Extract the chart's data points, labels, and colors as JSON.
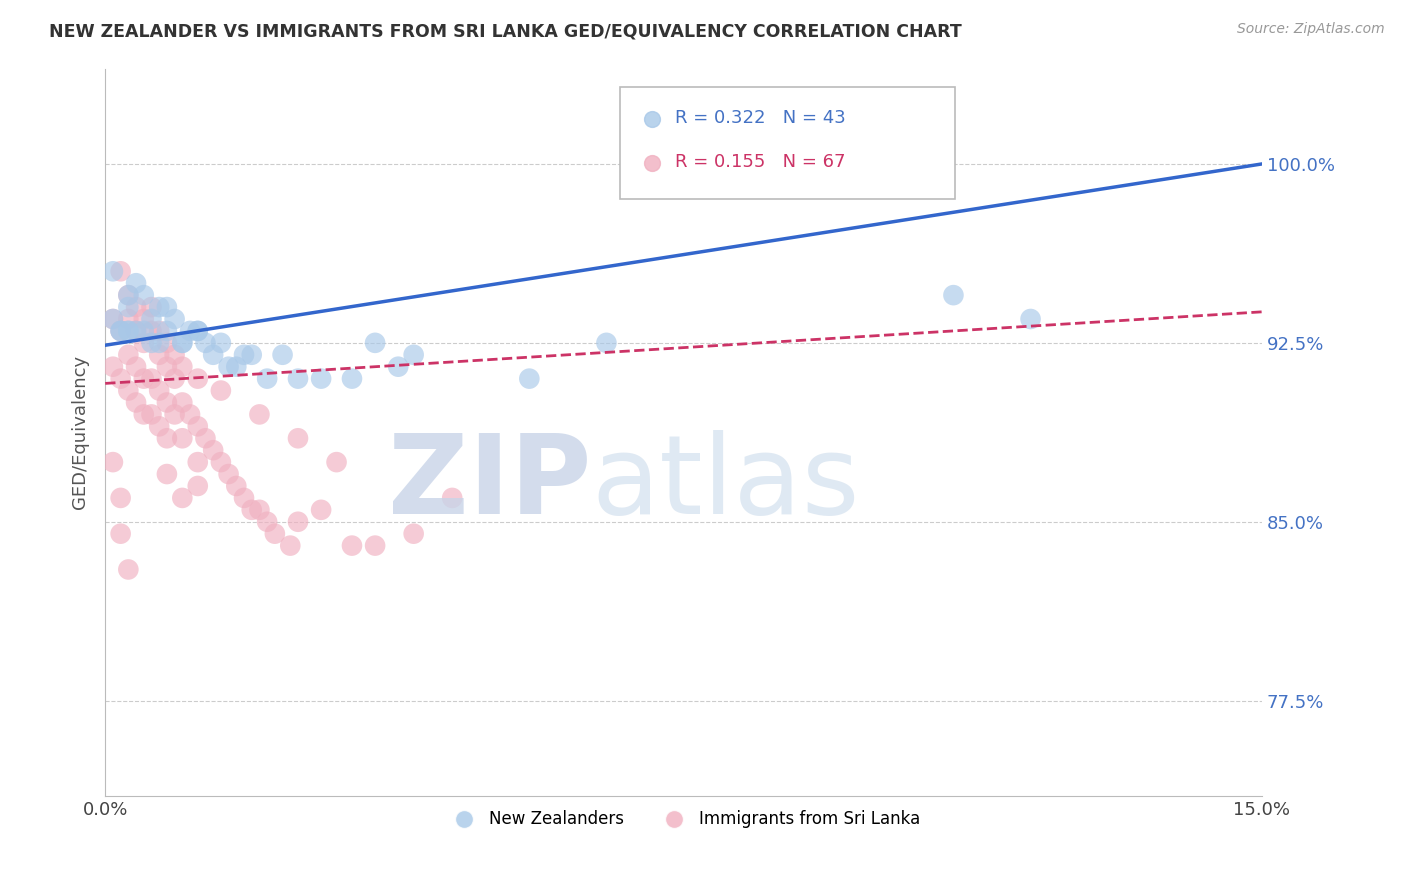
{
  "title": "NEW ZEALANDER VS IMMIGRANTS FROM SRI LANKA GED/EQUIVALENCY CORRELATION CHART",
  "source": "Source: ZipAtlas.com",
  "ylabel": "GED/Equivalency",
  "ytick_labels": [
    "77.5%",
    "85.0%",
    "92.5%",
    "100.0%"
  ],
  "ytick_values": [
    0.775,
    0.85,
    0.925,
    1.0
  ],
  "xmin": 0.0,
  "xmax": 0.15,
  "ymin": 0.735,
  "ymax": 1.04,
  "blue_color": "#a8c8e8",
  "pink_color": "#f0b0c0",
  "blue_line_color": "#3366cc",
  "pink_line_color": "#cc3366",
  "blue_line_y0": 0.924,
  "blue_line_y1": 1.0,
  "pink_line_y0": 0.908,
  "pink_line_y1": 0.938,
  "legend_text_blue": "R = 0.322   N = 43",
  "legend_text_pink": "R = 0.155   N = 67",
  "legend_color_blue": "#4472c4",
  "legend_color_pink": "#cc3366",
  "watermark_zip": "ZIP",
  "watermark_atlas": "atlas",
  "bottom_label_blue": "New Zealanders",
  "bottom_label_pink": "Immigrants from Sri Lanka",
  "blue_x": [
    0.001,
    0.002,
    0.003,
    0.003,
    0.004,
    0.004,
    0.005,
    0.005,
    0.006,
    0.007,
    0.007,
    0.008,
    0.009,
    0.01,
    0.011,
    0.012,
    0.013,
    0.014,
    0.015,
    0.016,
    0.017,
    0.018,
    0.019,
    0.021,
    0.023,
    0.025,
    0.028,
    0.032,
    0.038,
    0.001,
    0.002,
    0.003,
    0.006,
    0.008,
    0.01,
    0.012,
    0.055,
    0.065,
    0.11,
    0.12,
    0.035,
    0.04,
    0.003
  ],
  "blue_y": [
    0.935,
    0.93,
    0.945,
    0.94,
    0.95,
    0.93,
    0.945,
    0.93,
    0.925,
    0.94,
    0.925,
    0.93,
    0.935,
    0.925,
    0.93,
    0.93,
    0.925,
    0.92,
    0.925,
    0.915,
    0.915,
    0.92,
    0.92,
    0.91,
    0.92,
    0.91,
    0.91,
    0.91,
    0.915,
    0.955,
    0.93,
    0.93,
    0.935,
    0.94,
    0.925,
    0.93,
    0.91,
    0.925,
    0.945,
    0.935,
    0.925,
    0.92,
    0.93
  ],
  "pink_x": [
    0.001,
    0.001,
    0.002,
    0.002,
    0.003,
    0.003,
    0.003,
    0.004,
    0.004,
    0.004,
    0.005,
    0.005,
    0.005,
    0.006,
    0.006,
    0.006,
    0.007,
    0.007,
    0.007,
    0.008,
    0.008,
    0.008,
    0.009,
    0.009,
    0.01,
    0.01,
    0.011,
    0.012,
    0.012,
    0.013,
    0.014,
    0.015,
    0.016,
    0.017,
    0.018,
    0.019,
    0.02,
    0.021,
    0.022,
    0.024,
    0.025,
    0.028,
    0.032,
    0.035,
    0.04,
    0.008,
    0.01,
    0.012,
    0.002,
    0.003,
    0.004,
    0.005,
    0.006,
    0.007,
    0.008,
    0.009,
    0.01,
    0.012,
    0.015,
    0.02,
    0.025,
    0.03,
    0.045,
    0.001,
    0.002,
    0.002,
    0.003
  ],
  "pink_y": [
    0.935,
    0.915,
    0.93,
    0.91,
    0.935,
    0.92,
    0.905,
    0.93,
    0.915,
    0.9,
    0.925,
    0.91,
    0.895,
    0.93,
    0.91,
    0.895,
    0.92,
    0.905,
    0.89,
    0.915,
    0.9,
    0.885,
    0.91,
    0.895,
    0.9,
    0.885,
    0.895,
    0.89,
    0.875,
    0.885,
    0.88,
    0.875,
    0.87,
    0.865,
    0.86,
    0.855,
    0.855,
    0.85,
    0.845,
    0.84,
    0.85,
    0.855,
    0.84,
    0.84,
    0.845,
    0.87,
    0.86,
    0.865,
    0.955,
    0.945,
    0.94,
    0.935,
    0.94,
    0.93,
    0.925,
    0.92,
    0.915,
    0.91,
    0.905,
    0.895,
    0.885,
    0.875,
    0.86,
    0.875,
    0.86,
    0.845,
    0.83
  ]
}
